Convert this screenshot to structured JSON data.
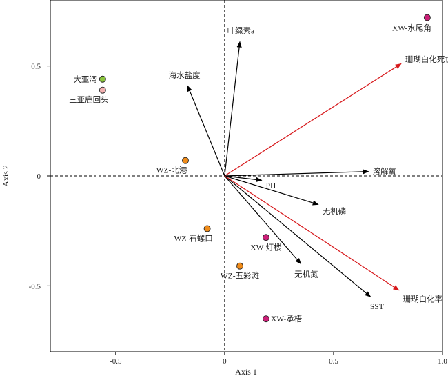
{
  "chart_data": {
    "type": "scatter",
    "title": "",
    "xlabel": "Axis 1",
    "ylabel": "Axis 2",
    "xlim": [
      -0.8,
      1.0
    ],
    "ylim": [
      -0.8,
      0.8
    ],
    "xticks": [
      -0.5,
      0,
      0.5,
      1.0
    ],
    "xtick_labels": [
      "-0.5",
      "0",
      "0.5",
      "1.0"
    ],
    "yticks": [
      -0.5,
      0,
      0.5
    ],
    "ytick_labels": [
      "-0.5",
      "0",
      "0.5"
    ],
    "grid": false,
    "zero_lines": "dashed",
    "points": [
      {
        "label": "XW-水尾角",
        "x": 0.93,
        "y": 0.72,
        "color": "#cc1f78"
      },
      {
        "label": "大亚湾",
        "x": -0.56,
        "y": 0.44,
        "color": "#8cc63f"
      },
      {
        "label": "三亚鹿回头",
        "x": -0.56,
        "y": 0.39,
        "color": "#f2b1b1"
      },
      {
        "label": "WZ-北港",
        "x": -0.18,
        "y": 0.07,
        "color": "#f08c1a"
      },
      {
        "label": "WZ-石螺口",
        "x": -0.08,
        "y": -0.24,
        "color": "#f08c1a"
      },
      {
        "label": "XW-灯楼",
        "x": 0.19,
        "y": -0.28,
        "color": "#cc1f78"
      },
      {
        "label": "WZ-五彩滩",
        "x": 0.07,
        "y": -0.41,
        "color": "#f08c1a"
      },
      {
        "label": "XW-承梧",
        "x": 0.19,
        "y": -0.65,
        "color": "#cc1f78"
      }
    ],
    "vectors": [
      {
        "label": "叶绿素a",
        "x": 0.07,
        "y": 0.61,
        "color": "#000000"
      },
      {
        "label": "海水盐度",
        "x": -0.17,
        "y": 0.41,
        "color": "#000000"
      },
      {
        "label": "珊瑚白化死亡率",
        "x": 0.81,
        "y": 0.51,
        "color": "#d7191c"
      },
      {
        "label": "溶解氧",
        "x": 0.66,
        "y": 0.02,
        "color": "#000000"
      },
      {
        "label": "PH",
        "x": 0.17,
        "y": -0.02,
        "color": "#000000"
      },
      {
        "label": "无机磷",
        "x": 0.43,
        "y": -0.13,
        "color": "#000000"
      },
      {
        "label": "无机氮",
        "x": 0.35,
        "y": -0.4,
        "color": "#000000"
      },
      {
        "label": "SST",
        "x": 0.67,
        "y": -0.55,
        "color": "#000000"
      },
      {
        "label": "珊瑚白化率",
        "x": 0.8,
        "y": -0.52,
        "color": "#d7191c"
      }
    ]
  }
}
